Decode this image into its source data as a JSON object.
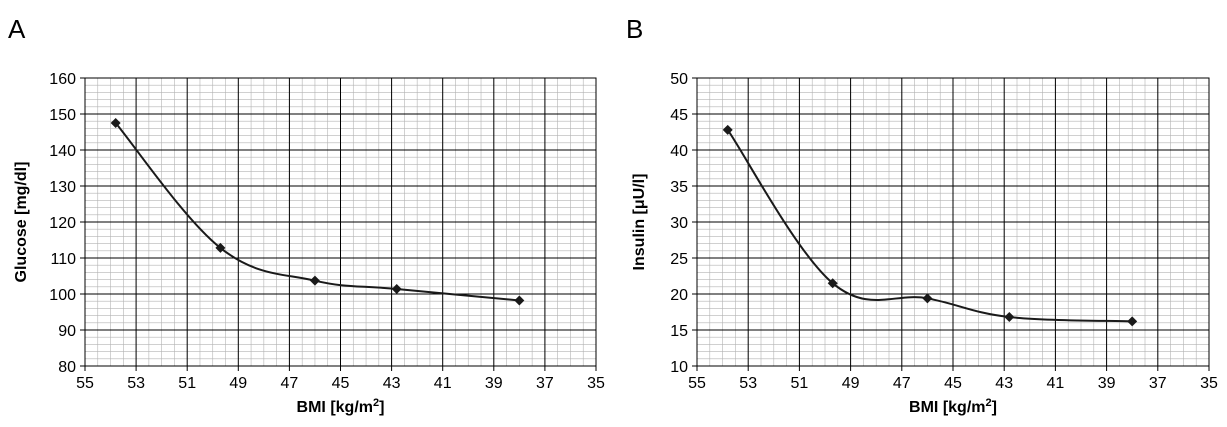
{
  "panels": [
    {
      "letter": "A",
      "chart_data": {
        "type": "line",
        "title": "",
        "xlabel": "BMI [kg/m",
        "xlabel_sup": "2",
        "xlabel_end": "]",
        "ylabel": "Glucose [mg/dl]",
        "x_ticks": [
          55,
          53,
          51,
          49,
          47,
          45,
          43,
          41,
          39,
          37,
          35
        ],
        "y_ticks": [
          80,
          90,
          100,
          110,
          120,
          130,
          140,
          150,
          160
        ],
        "xlim": [
          55,
          35
        ],
        "ylim": [
          80,
          160
        ],
        "x_reversed": true,
        "grid": true,
        "series": [
          {
            "x": [
              53.8,
              49.7,
              46.0,
              42.8,
              38.0
            ],
            "y": [
              147.5,
              112.8,
              103.7,
              101.4,
              98.2
            ]
          }
        ]
      }
    },
    {
      "letter": "B",
      "chart_data": {
        "type": "line",
        "title": "",
        "xlabel": "BMI [kg/m",
        "xlabel_sup": "2",
        "xlabel_end": "]",
        "ylabel": "Insulin [μU/l]",
        "x_ticks": [
          55,
          53,
          51,
          49,
          47,
          45,
          43,
          41,
          39,
          37,
          35
        ],
        "y_ticks": [
          10,
          15,
          20,
          25,
          30,
          35,
          40,
          45,
          50
        ],
        "xlim": [
          55,
          35
        ],
        "ylim": [
          10,
          50
        ],
        "x_reversed": true,
        "grid": true,
        "series": [
          {
            "x": [
              53.8,
              49.7,
              46.0,
              42.8,
              38.0
            ],
            "y": [
              42.8,
              21.5,
              19.4,
              16.8,
              16.2
            ]
          }
        ]
      }
    }
  ]
}
